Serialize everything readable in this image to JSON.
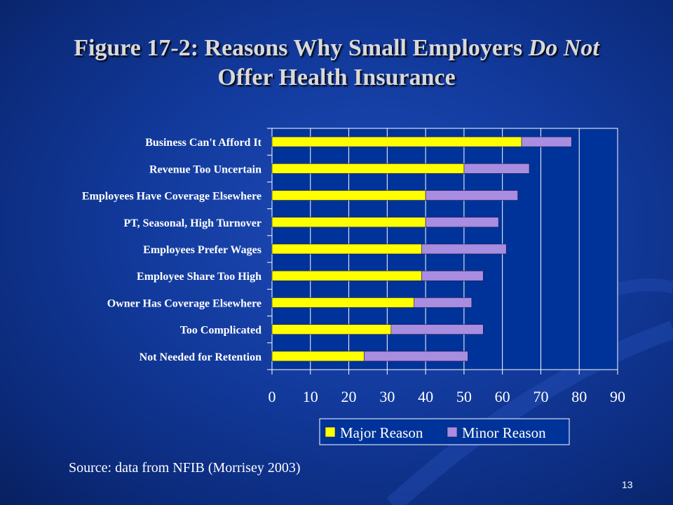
{
  "slide": {
    "title_part1": "Figure 17-2:  Reasons Why Small Employers",
    "title_italic": "Do Not",
    "title_line2": "Offer Health Insurance",
    "source": "Source: data from NFIB (Morrisey 2003)",
    "page_number": "13"
  },
  "colors": {
    "major": "#ffff00",
    "minor": "#a98de0",
    "plot_bg": "#003399",
    "text": "#ffffff"
  },
  "chart_data": {
    "type": "bar",
    "orientation": "horizontal",
    "stacked": true,
    "categories": [
      "Business Can't Afford It",
      "Revenue Too Uncertain",
      "Employees Have Coverage Elsewhere",
      "PT, Seasonal, High Turnover",
      "Employees Prefer Wages",
      "Employee Share Too High",
      "Owner Has Coverage Elsewhere",
      "Too Complicated",
      "Not Needed for Retention"
    ],
    "series": [
      {
        "name": "Major Reason",
        "values": [
          65,
          50,
          40,
          40,
          39,
          39,
          37,
          31,
          24
        ]
      },
      {
        "name": "Minor Reason",
        "values": [
          13,
          17,
          24,
          19,
          22,
          16,
          15,
          24,
          27
        ]
      }
    ],
    "xlim": [
      0,
      90
    ],
    "xticks": [
      0,
      10,
      20,
      30,
      40,
      50,
      60,
      70,
      80,
      90
    ],
    "grid": "vertical major gridlines",
    "legend_position": "bottom-right"
  }
}
